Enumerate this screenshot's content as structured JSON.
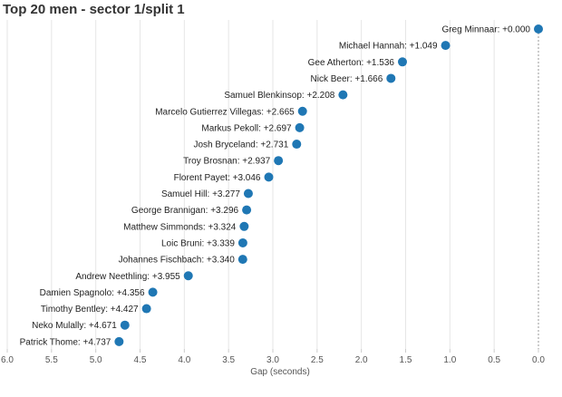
{
  "chart_data": {
    "type": "scatter",
    "title": "Top 20 men - sector 1/split 1",
    "xlabel": "Gap (seconds)",
    "ylabel": "",
    "xlim": [
      6.0,
      0.0
    ],
    "x_reversed": true,
    "x_ticks": [
      "6.0",
      "5.5",
      "5.0",
      "4.5",
      "4.0",
      "3.5",
      "3.0",
      "2.5",
      "2.0",
      "1.5",
      "1.0",
      "0.5",
      "0.0"
    ],
    "x_tick_values": [
      6.0,
      5.5,
      5.0,
      4.5,
      4.0,
      3.5,
      3.0,
      2.5,
      2.0,
      1.5,
      1.0,
      0.5,
      0.0
    ],
    "grid": true,
    "reference_line": {
      "value": 0.0,
      "style": "dotted"
    },
    "color": "#1f77b4",
    "points": [
      {
        "name": "Greg Minnaar",
        "gap": 0.0,
        "label": "Greg Minnaar: +0.000"
      },
      {
        "name": "Michael Hannah",
        "gap": 1.049,
        "label": "Michael Hannah: +1.049"
      },
      {
        "name": "Gee Atherton",
        "gap": 1.536,
        "label": "Gee Atherton: +1.536"
      },
      {
        "name": "Nick Beer",
        "gap": 1.666,
        "label": "Nick Beer: +1.666"
      },
      {
        "name": "Samuel Blenkinsop",
        "gap": 2.208,
        "label": "Samuel Blenkinsop: +2.208"
      },
      {
        "name": "Marcelo Gutierrez Villegas",
        "gap": 2.665,
        "label": "Marcelo Gutierrez Villegas: +2.665"
      },
      {
        "name": "Markus Pekoll",
        "gap": 2.697,
        "label": "Markus Pekoll: +2.697"
      },
      {
        "name": "Josh Bryceland",
        "gap": 2.731,
        "label": "Josh Bryceland: +2.731"
      },
      {
        "name": "Troy Brosnan",
        "gap": 2.937,
        "label": "Troy Brosnan: +2.937"
      },
      {
        "name": "Florent Payet",
        "gap": 3.046,
        "label": "Florent Payet: +3.046"
      },
      {
        "name": "Samuel Hill",
        "gap": 3.277,
        "label": "Samuel Hill: +3.277"
      },
      {
        "name": "George Brannigan",
        "gap": 3.296,
        "label": "George Brannigan: +3.296"
      },
      {
        "name": "Matthew Simmonds",
        "gap": 3.324,
        "label": "Matthew Simmonds: +3.324"
      },
      {
        "name": "Loic Bruni",
        "gap": 3.339,
        "label": "Loic Bruni: +3.339"
      },
      {
        "name": "Johannes Fischbach",
        "gap": 3.34,
        "label": "Johannes Fischbach: +3.340"
      },
      {
        "name": "Andrew Neethling",
        "gap": 3.955,
        "label": "Andrew Neethling: +3.955"
      },
      {
        "name": "Damien Spagnolo",
        "gap": 4.356,
        "label": "Damien Spagnolo: +4.356"
      },
      {
        "name": "Timothy Bentley",
        "gap": 4.427,
        "label": "Timothy Bentley: +4.427"
      },
      {
        "name": "Neko Mulally",
        "gap": 4.671,
        "label": "Neko Mulally: +4.671"
      },
      {
        "name": "Patrick Thome",
        "gap": 4.737,
        "label": "Patrick Thome: +4.737"
      }
    ]
  }
}
